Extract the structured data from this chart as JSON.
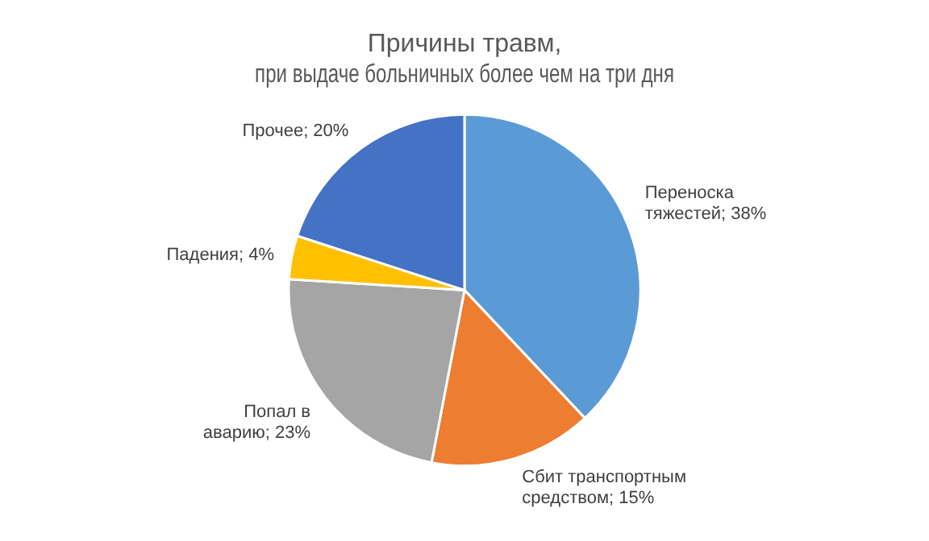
{
  "chart_data": {
    "type": "pie",
    "title": "Причины травм,\nпри выдаче больничных более чем на три дня",
    "categories": [
      "Переноска тяжестей",
      "Сбит транспортным средством",
      "Попал в аварию",
      "Падения",
      "Прочее"
    ],
    "values": [
      38,
      15,
      23,
      4,
      20
    ],
    "colors": [
      "#5b9bd5",
      "#ed7d31",
      "#a5a5a5",
      "#ffc000",
      "#4472c4"
    ],
    "value_labels": [
      "38%",
      "15%",
      "23%",
      "4%",
      "20%"
    ],
    "legend": false
  }
}
